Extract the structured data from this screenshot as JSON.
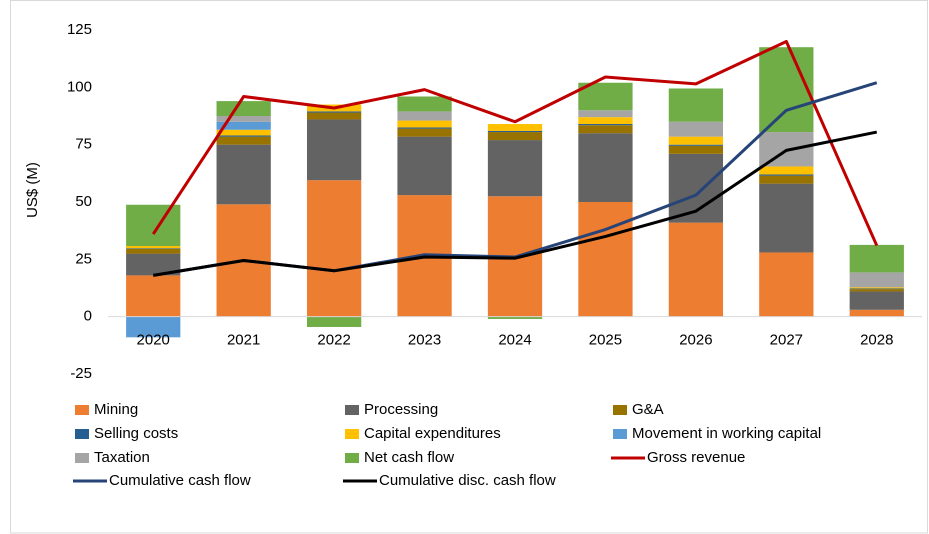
{
  "chart_data": {
    "type": "bar",
    "stacked": true,
    "y_label": "US$ (M)",
    "categories": [
      "2020",
      "2021",
      "2022",
      "2023",
      "2024",
      "2025",
      "2026",
      "2027",
      "2028"
    ],
    "ylim": [
      -25,
      125
    ],
    "yticks": [
      -25,
      0,
      25,
      50,
      75,
      100,
      125
    ],
    "grid": false,
    "legend": "bottom",
    "series": [
      {
        "name": "Mining",
        "type": "bar",
        "color": "#ED7D31",
        "values": [
          18,
          49,
          59.5,
          53,
          52.5,
          50,
          41,
          28,
          3
        ]
      },
      {
        "name": "Processing",
        "type": "bar",
        "color": "#636363",
        "values": [
          9.5,
          26,
          26.5,
          25.5,
          24.5,
          30,
          30,
          30,
          8
        ]
      },
      {
        "name": "G&A",
        "type": "bar",
        "color": "#997300",
        "values": [
          2,
          3.5,
          3,
          3.5,
          3.5,
          3.5,
          3.5,
          3.5,
          1
        ]
      },
      {
        "name": "Selling costs",
        "type": "bar",
        "color": "#255E91",
        "values": [
          0.3,
          0.5,
          0.5,
          0.5,
          0.5,
          0.5,
          0.5,
          0.5,
          0.3
        ]
      },
      {
        "name": "Capital expenditures",
        "type": "bar",
        "color": "#FFC000",
        "values": [
          1,
          2.5,
          3,
          3,
          3,
          3,
          3.5,
          3.5,
          0.5
        ]
      },
      {
        "name": "Movement in working capital",
        "type": "bar",
        "color": "#5B9BD5",
        "values": [
          -9,
          3.5,
          0,
          0,
          0,
          0,
          0,
          0,
          0
        ]
      },
      {
        "name": "Taxation",
        "type": "bar",
        "color": "#A5A5A5",
        "values": [
          0,
          2.5,
          0,
          4,
          0,
          3,
          6.5,
          15,
          6.5
        ]
      },
      {
        "name": "Net cash flow",
        "type": "bar",
        "color": "#70AD47",
        "values": [
          18,
          6.5,
          -4.5,
          6.5,
          -1,
          12,
          14.5,
          37,
          12
        ]
      },
      {
        "name": "Gross revenue",
        "type": "line",
        "color": "#C00000",
        "values": [
          36,
          96,
          91,
          99,
          85,
          104.5,
          101.5,
          120,
          31
        ]
      },
      {
        "name": "Cumulative cash flow",
        "type": "line",
        "color": "#264478",
        "values": [
          18,
          24.5,
          20,
          27,
          26,
          38,
          53,
          90,
          102
        ]
      },
      {
        "name": "Cumulative disc. cash flow",
        "type": "line",
        "color": "#000000",
        "values": [
          18,
          24.5,
          20,
          26,
          25.5,
          35,
          46,
          72.5,
          80.5
        ]
      }
    ]
  }
}
